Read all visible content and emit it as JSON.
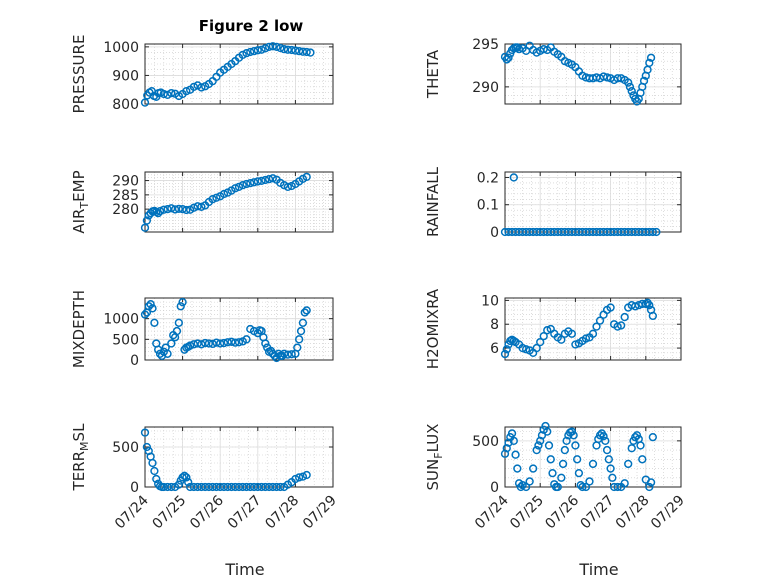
{
  "figure": {
    "title": "Figure 2 low"
  },
  "colors": {
    "marker": "#0072BD",
    "axis": "#262626",
    "grid_major": "#dcdcdc",
    "grid_minor": "#c8c8c8"
  },
  "chart_data": [
    {
      "type": "scatter",
      "ylabel": "PRESSURE",
      "ylim": [
        800,
        1010
      ],
      "yticks": [
        800,
        900,
        1000
      ],
      "xlim": [
        "07/24",
        "07/29"
      ],
      "xticks": [],
      "xlabel": "",
      "title": "Figure 2 low",
      "x": [
        24.0,
        24.06,
        24.12,
        24.18,
        24.24,
        24.3,
        24.36,
        24.42,
        24.5,
        24.6,
        24.7,
        24.8,
        24.9,
        25.0,
        25.1,
        25.2,
        25.3,
        25.4,
        25.5,
        25.6,
        25.7,
        25.8,
        25.9,
        26.0,
        26.1,
        26.2,
        26.3,
        26.4,
        26.5,
        26.6,
        26.7,
        26.8,
        26.9,
        27.0,
        27.1,
        27.2,
        27.3,
        27.4,
        27.5,
        27.6,
        27.7,
        27.8,
        27.9,
        28.0,
        28.1,
        28.2,
        28.3,
        28.4
      ],
      "y": [
        805,
        830,
        840,
        845,
        828,
        825,
        838,
        840,
        835,
        832,
        838,
        836,
        828,
        835,
        845,
        850,
        860,
        865,
        858,
        862,
        870,
        880,
        895,
        910,
        920,
        930,
        940,
        950,
        962,
        972,
        978,
        982,
        985,
        988,
        990,
        995,
        1000,
        1002,
        1000,
        996,
        992,
        990,
        989,
        987,
        985,
        983,
        982,
        980
      ]
    },
    {
      "type": "scatter",
      "ylabel": "THETA",
      "ylim": [
        288,
        295
      ],
      "yticks": [
        290,
        295
      ],
      "xlim": [
        "07/24",
        "07/29"
      ],
      "xticks": [],
      "xlabel": "",
      "x": [
        24.0,
        24.05,
        24.1,
        24.15,
        24.2,
        24.25,
        24.3,
        24.35,
        24.4,
        24.5,
        24.6,
        24.7,
        24.8,
        24.9,
        25.0,
        25.1,
        25.2,
        25.3,
        25.4,
        25.5,
        25.6,
        25.7,
        25.8,
        25.9,
        26.0,
        26.1,
        26.2,
        26.3,
        26.4,
        26.5,
        26.6,
        26.7,
        26.8,
        26.9,
        27.0,
        27.1,
        27.2,
        27.3,
        27.4,
        27.5,
        27.55,
        27.6,
        27.65,
        27.7,
        27.75,
        27.8,
        27.85,
        27.9,
        27.95,
        28.0,
        28.05,
        28.1,
        28.15
      ],
      "y": [
        293.5,
        293.2,
        293.4,
        293.9,
        294.3,
        294.5,
        294.6,
        294.6,
        294.4,
        294.5,
        294.2,
        294.8,
        294.3,
        294.0,
        294.2,
        294.4,
        294.3,
        294.6,
        294.1,
        293.8,
        293.5,
        293.0,
        292.8,
        292.6,
        292.3,
        291.8,
        291.3,
        291.1,
        291.0,
        291.0,
        291.1,
        291.0,
        291.2,
        291.1,
        291.0,
        290.8,
        291.0,
        291.0,
        290.8,
        290.5,
        290.0,
        289.5,
        289.0,
        288.6,
        288.3,
        288.6,
        289.3,
        290.0,
        290.7,
        291.3,
        292.0,
        292.8,
        293.4
      ]
    },
    {
      "type": "scatter",
      "ylabel": "AIR_TEMP",
      "ylim": [
        272,
        293
      ],
      "yticks": [
        280,
        285,
        290
      ],
      "xlim": [
        "07/24",
        "07/29"
      ],
      "xticks": [],
      "xlabel": "",
      "x": [
        24.0,
        24.05,
        24.1,
        24.15,
        24.2,
        24.25,
        24.3,
        24.35,
        24.4,
        24.5,
        24.6,
        24.7,
        24.8,
        24.9,
        25.0,
        25.1,
        25.2,
        25.3,
        25.4,
        25.5,
        25.6,
        25.7,
        25.8,
        25.9,
        26.0,
        26.1,
        26.2,
        26.3,
        26.4,
        26.5,
        26.6,
        26.7,
        26.8,
        26.9,
        27.0,
        27.1,
        27.2,
        27.3,
        27.4,
        27.5,
        27.6,
        27.7,
        27.8,
        27.9,
        28.0,
        28.1,
        28.2,
        28.3
      ],
      "y": [
        273.5,
        276.0,
        277.8,
        278.6,
        279.2,
        279.4,
        279.0,
        278.6,
        279.3,
        279.8,
        280.0,
        280.3,
        279.9,
        280.1,
        280.0,
        279.7,
        279.8,
        280.5,
        281.0,
        280.8,
        281.3,
        282.5,
        283.5,
        284.0,
        284.5,
        285.3,
        285.8,
        286.5,
        287.3,
        287.8,
        288.4,
        288.8,
        289.1,
        289.4,
        289.7,
        289.9,
        290.2,
        290.5,
        290.8,
        290.3,
        289.2,
        288.4,
        287.8,
        288.1,
        288.8,
        289.7,
        290.6,
        291.3
      ]
    },
    {
      "type": "scatter",
      "ylabel": "RAINFALL",
      "ylim": [
        0,
        0.22
      ],
      "yticks": [
        0,
        0.1,
        0.2
      ],
      "xlim": [
        "07/24",
        "07/29"
      ],
      "xticks": [],
      "xlabel": "",
      "x": [
        24.0,
        24.1,
        24.2,
        24.25,
        24.3,
        24.4,
        24.5,
        24.6,
        24.7,
        24.8,
        24.9,
        25.0,
        25.1,
        25.2,
        25.3,
        25.4,
        25.5,
        25.6,
        25.7,
        25.8,
        25.9,
        26.0,
        26.1,
        26.2,
        26.3,
        26.4,
        26.5,
        26.6,
        26.7,
        26.8,
        26.9,
        27.0,
        27.1,
        27.2,
        27.3,
        27.4,
        27.5,
        27.6,
        27.7,
        27.8,
        27.9,
        28.0,
        28.1,
        28.2,
        28.3
      ],
      "y": [
        0,
        0,
        0,
        0.2,
        0,
        0,
        0,
        0,
        0,
        0,
        0,
        0,
        0,
        0,
        0,
        0,
        0,
        0,
        0,
        0,
        0,
        0,
        0,
        0,
        0,
        0,
        0,
        0,
        0,
        0,
        0,
        0,
        0,
        0,
        0,
        0,
        0,
        0,
        0,
        0,
        0,
        0,
        0,
        0,
        0
      ]
    },
    {
      "type": "scatter",
      "ylabel": "MIXDEPTH",
      "ylim": [
        0,
        1500
      ],
      "yticks": [
        0,
        500,
        1000
      ],
      "xlim": [
        "07/24",
        "07/29"
      ],
      "xticks": [],
      "xlabel": "",
      "x": [
        24.0,
        24.05,
        24.1,
        24.15,
        24.2,
        24.25,
        24.3,
        24.35,
        24.4,
        24.45,
        24.5,
        24.55,
        24.6,
        24.7,
        24.75,
        24.8,
        24.85,
        24.9,
        24.95,
        25.0,
        25.05,
        25.1,
        25.15,
        25.2,
        25.3,
        25.4,
        25.5,
        25.6,
        25.7,
        25.8,
        25.9,
        26.0,
        26.1,
        26.2,
        26.3,
        26.4,
        26.5,
        26.6,
        26.7,
        26.8,
        26.9,
        27.0,
        27.05,
        27.1,
        27.15,
        27.2,
        27.25,
        27.3,
        27.35,
        27.4,
        27.45,
        27.5,
        27.55,
        27.6,
        27.65,
        27.7,
        27.8,
        27.9,
        28.0,
        28.05,
        28.1,
        28.15,
        28.2,
        28.25,
        28.3
      ],
      "y": [
        1100,
        1150,
        1300,
        1350,
        1250,
        900,
        400,
        250,
        150,
        100,
        200,
        300,
        150,
        400,
        600,
        550,
        700,
        900,
        1300,
        1400,
        250,
        300,
        320,
        350,
        380,
        400,
        380,
        410,
        400,
        390,
        420,
        400,
        410,
        430,
        440,
        420,
        430,
        450,
        500,
        750,
        700,
        650,
        720,
        700,
        550,
        400,
        300,
        200,
        220,
        150,
        100,
        50,
        150,
        100,
        100,
        150,
        130,
        140,
        150,
        300,
        500,
        700,
        900,
        1150,
        1200
      ]
    },
    {
      "type": "scatter",
      "ylabel": "H2OMIXRA",
      "ylim": [
        5,
        10.2
      ],
      "yticks": [
        6,
        8,
        10
      ],
      "xlim": [
        "07/24",
        "07/29"
      ],
      "xticks": [],
      "xlabel": "",
      "x": [
        24.0,
        24.05,
        24.1,
        24.15,
        24.2,
        24.25,
        24.3,
        24.4,
        24.5,
        24.6,
        24.7,
        24.8,
        24.9,
        25.0,
        25.1,
        25.2,
        25.3,
        25.4,
        25.5,
        25.6,
        25.7,
        25.8,
        25.9,
        26.0,
        26.1,
        26.2,
        26.3,
        26.4,
        26.5,
        26.6,
        26.7,
        26.8,
        26.9,
        27.0,
        27.1,
        27.2,
        27.3,
        27.4,
        27.5,
        27.6,
        27.7,
        27.8,
        27.9,
        28.0,
        28.05,
        28.1,
        28.15,
        28.2
      ],
      "y": [
        5.5,
        5.9,
        6.3,
        6.6,
        6.7,
        6.6,
        6.5,
        6.3,
        6.0,
        5.9,
        5.8,
        5.6,
        6.0,
        6.5,
        7.0,
        7.5,
        7.6,
        7.2,
        6.9,
        6.7,
        7.2,
        7.4,
        7.2,
        6.3,
        6.4,
        6.6,
        6.8,
        6.9,
        7.2,
        7.8,
        8.3,
        8.8,
        9.2,
        9.4,
        8.0,
        7.8,
        7.9,
        8.6,
        9.4,
        9.6,
        9.5,
        9.6,
        9.7,
        9.7,
        9.8,
        9.6,
        9.2,
        8.7
      ]
    },
    {
      "type": "scatter",
      "ylabel": "TERR_MSL",
      "ylim": [
        0,
        750
      ],
      "yticks": [
        0,
        500
      ],
      "xlim": [
        "07/24",
        "07/29"
      ],
      "xticks": [
        "07/24",
        "07/25",
        "07/26",
        "07/27",
        "07/28",
        "07/29"
      ],
      "xlabel": "Time",
      "x": [
        24.0,
        24.05,
        24.1,
        24.15,
        24.2,
        24.25,
        24.3,
        24.35,
        24.4,
        24.45,
        24.5,
        24.6,
        24.7,
        24.8,
        24.9,
        24.95,
        25.0,
        25.05,
        25.1,
        25.15,
        25.2,
        25.3,
        25.4,
        25.5,
        25.6,
        25.7,
        25.8,
        25.9,
        26.0,
        26.1,
        26.2,
        26.3,
        26.4,
        26.5,
        26.6,
        26.7,
        26.8,
        26.9,
        27.0,
        27.1,
        27.2,
        27.3,
        27.4,
        27.5,
        27.6,
        27.7,
        27.8,
        27.9,
        28.0,
        28.1,
        28.2,
        28.3
      ],
      "y": [
        680,
        500,
        450,
        380,
        300,
        200,
        100,
        40,
        10,
        0,
        0,
        0,
        0,
        0,
        30,
        80,
        120,
        140,
        120,
        60,
        0,
        0,
        0,
        0,
        0,
        0,
        0,
        0,
        0,
        0,
        0,
        0,
        0,
        0,
        0,
        0,
        0,
        0,
        0,
        0,
        0,
        0,
        0,
        0,
        0,
        0,
        30,
        60,
        100,
        120,
        130,
        150
      ]
    },
    {
      "type": "scatter",
      "ylabel": "SUN_FLUX",
      "ylim": [
        0,
        650
      ],
      "yticks": [
        0,
        500
      ],
      "xlim": [
        "07/24",
        "07/29"
      ],
      "xticks": [
        "07/24",
        "07/25",
        "07/26",
        "07/27",
        "07/28",
        "07/29"
      ],
      "xlabel": "Time",
      "x": [
        24.0,
        24.05,
        24.1,
        24.15,
        24.2,
        24.25,
        24.3,
        24.35,
        24.4,
        24.45,
        24.5,
        24.6,
        24.7,
        24.8,
        24.9,
        24.95,
        25.0,
        25.05,
        25.1,
        25.15,
        25.2,
        25.25,
        25.3,
        25.35,
        25.4,
        25.45,
        25.5,
        25.6,
        25.65,
        25.7,
        25.75,
        25.8,
        25.85,
        25.9,
        25.95,
        26.0,
        26.05,
        26.1,
        26.15,
        26.2,
        26.3,
        26.4,
        26.5,
        26.6,
        26.65,
        26.7,
        26.75,
        26.8,
        26.85,
        26.9,
        26.95,
        27.0,
        27.05,
        27.1,
        27.2,
        27.3,
        27.4,
        27.5,
        27.6,
        27.65,
        27.7,
        27.75,
        27.8,
        27.85,
        27.9,
        28.0,
        28.1,
        28.15,
        28.2
      ],
      "y": [
        360,
        420,
        480,
        540,
        580,
        500,
        350,
        200,
        40,
        0,
        20,
        0,
        60,
        200,
        400,
        450,
        500,
        560,
        620,
        660,
        600,
        450,
        300,
        150,
        30,
        0,
        0,
        100,
        250,
        400,
        500,
        560,
        590,
        600,
        560,
        450,
        300,
        150,
        20,
        0,
        0,
        60,
        250,
        450,
        520,
        560,
        580,
        550,
        500,
        400,
        300,
        200,
        100,
        0,
        0,
        0,
        40,
        250,
        420,
        500,
        540,
        560,
        520,
        450,
        300,
        80,
        0,
        50,
        540
      ]
    }
  ]
}
